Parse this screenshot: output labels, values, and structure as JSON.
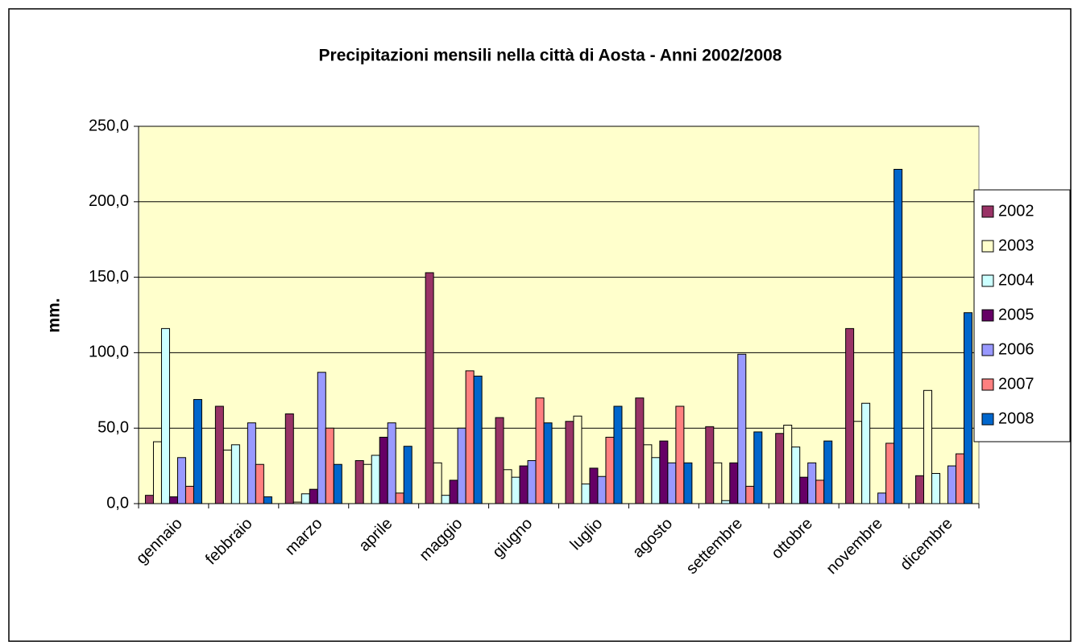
{
  "chart_data": {
    "type": "bar",
    "title": "Precipitazioni mensili nella città di Aosta - Anni 2002/2008",
    "y_label": "mm.",
    "categories": [
      "gennaio",
      "febbraio",
      "marzo",
      "aprile",
      "maggio",
      "giugno",
      "luglio",
      "agosto",
      "settembre",
      "ottobre",
      "novembre",
      "dicembre"
    ],
    "series": [
      {
        "name": "2002",
        "color": "#993366",
        "values": [
          5.5,
          64.5,
          59.5,
          28.5,
          153,
          57,
          54.5,
          70,
          51,
          46.5,
          116,
          18.5
        ]
      },
      {
        "name": "2003",
        "color": "#ffffcc",
        "values": [
          41,
          35.5,
          1,
          26,
          27,
          22.5,
          58,
          39,
          27,
          52,
          54.5,
          75
        ]
      },
      {
        "name": "2004",
        "color": "#ccffff",
        "values": [
          116,
          39,
          6.5,
          32,
          5.5,
          17.5,
          13,
          30.5,
          2,
          37.5,
          66.5,
          20
        ]
      },
      {
        "name": "2005",
        "color": "#660066",
        "values": [
          4.5,
          0,
          9.5,
          44,
          15.5,
          25,
          23.5,
          41.5,
          27,
          17.5,
          0,
          0
        ]
      },
      {
        "name": "2006",
        "color": "#9999ff",
        "values": [
          30.5,
          53.5,
          87,
          53.5,
          50,
          28.5,
          18,
          27,
          99,
          27,
          7,
          25
        ]
      },
      {
        "name": "2007",
        "color": "#ff8080",
        "values": [
          11.5,
          26,
          50,
          7,
          88,
          70,
          44,
          64.5,
          11.5,
          15.5,
          40,
          33
        ]
      },
      {
        "name": "2008",
        "color": "#0066cc",
        "values": [
          69,
          4.5,
          26,
          38,
          84.5,
          53.5,
          64.5,
          27,
          47.5,
          41.5,
          221.5,
          126.5
        ]
      }
    ],
    "ylim": [
      0,
      250
    ],
    "yticks": [
      {
        "value": 0,
        "label": "0,0"
      },
      {
        "value": 50,
        "label": "50,0"
      },
      {
        "value": 100,
        "label": "100,0"
      },
      {
        "value": 150,
        "label": "150,0"
      },
      {
        "value": 200,
        "label": "200,0"
      },
      {
        "value": 250,
        "label": "250,0"
      }
    ],
    "grid": true,
    "legend": "right",
    "plot_background": "#ffffcc"
  }
}
